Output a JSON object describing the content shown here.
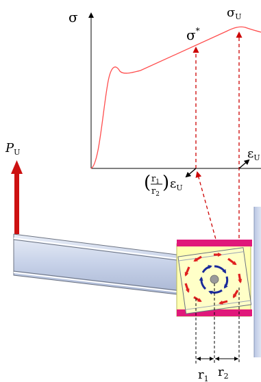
{
  "labels": {
    "sigma_axis": "σ",
    "sigma_star": "σ",
    "sigma_star_sup": "*",
    "sigma_u": "σ",
    "sigma_u_sub": "U",
    "epsilon_u": "ε",
    "epsilon_u_sub": "U",
    "load": "P",
    "load_sub": "U",
    "ratio_num": "r",
    "ratio_num_sub": "1",
    "ratio_den": "r",
    "ratio_den_sub": "2",
    "ratio_eps": "ε",
    "ratio_eps_sub": "U",
    "r1": "r",
    "r1_sub": "1",
    "r2": "r",
    "r2_sub": "2"
  },
  "colors": {
    "curve": "#ff4d4d",
    "dashed": "#cc0000",
    "load_arrow": "#cc1111",
    "beam_fill": "#c8d4ea",
    "beam_edge": "#6b7280",
    "column": "#ccd6ee",
    "plate": "#e0187a",
    "bolt_group_fill": "#ffffb3",
    "bolt_outer": "#e02020",
    "bolt_inner": "#1a2a9a"
  }
}
